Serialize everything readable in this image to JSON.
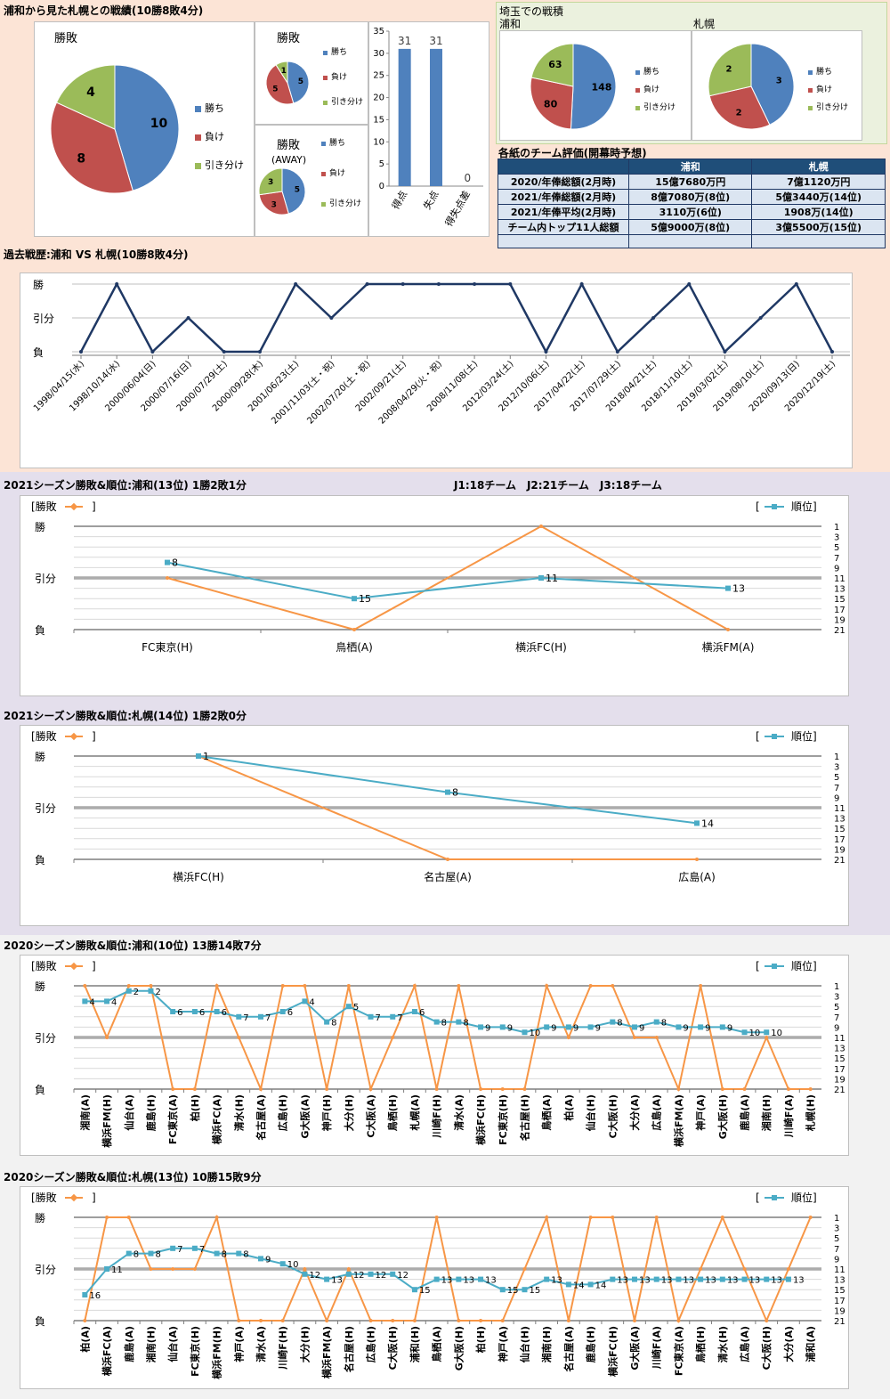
{
  "colors": {
    "blue": "#4f81bd",
    "red": "#c0504d",
    "green": "#9bbb59",
    "navy": "#1f3864",
    "teal": "#4bacc6",
    "orange": "#f79646",
    "bg_peach": "#fce4d6",
    "bg_lavender": "#e4dfec",
    "bg_gray": "#f2f2f2"
  },
  "overall": {
    "title": "浦和から見た札幌との戦績(10勝8敗4分)",
    "legend": [
      "勝ち",
      "負け",
      "引き分け"
    ],
    "pie_total": {
      "title": "勝敗",
      "values": [
        10,
        8,
        4
      ]
    },
    "pie_home": {
      "title": "勝敗",
      "values": [
        5,
        5,
        1
      ]
    },
    "pie_away": {
      "title": "勝敗",
      "subtitle": "(AWAY)",
      "values": [
        5,
        3,
        3
      ]
    },
    "goals_bar": {
      "categories": [
        "得点",
        "失点",
        "得失点差"
      ],
      "values": [
        31,
        31,
        0
      ],
      "yticks": [
        "0",
        "5",
        "10",
        "15",
        "20",
        "25",
        "30",
        "35"
      ]
    }
  },
  "saitama": {
    "title": "埼玉での戦積",
    "urawa": {
      "label": "浦和",
      "values": [
        148,
        80,
        63
      ]
    },
    "sapporo": {
      "label": "札幌",
      "values": [
        3,
        2,
        2
      ]
    },
    "legend": [
      "勝ち",
      "負け",
      "引き分け"
    ]
  },
  "evaluation": {
    "title": "各紙のチーム評価(開幕時予想)",
    "headers": [
      "",
      "浦和",
      "札幌"
    ],
    "rows": [
      [
        "2020/年俸総額(2月時)",
        "15億7680万円",
        "7億1120万円"
      ],
      [
        "2021/年俸総額(2月時)",
        "8億7080万(8位)",
        "5億3440万(14位)"
      ],
      [
        "2021/年俸平均(2月時)",
        "3110万(6位)",
        "1908万(14位)"
      ],
      [
        "チーム内トップ11人総額",
        "5億9000万(8位)",
        "3億5500万(15位)"
      ],
      [
        "",
        "",
        ""
      ]
    ]
  },
  "history": {
    "title": "過去戦歴:浦和 VS 札幌(10勝8敗4分)",
    "ylabels": [
      "勝",
      "引分",
      "負"
    ],
    "dates": [
      "1998/04/15(水)",
      "1998/10/14(水)",
      "2000/06/04(日)",
      "2000/07/16(日)",
      "2000/07/29(土)",
      "2000/09/28(木)",
      "2001/06/23(土)",
      "2001/11/03(土・祝)",
      "2002/07/20(土・祝)",
      "2002/09/21(土)",
      "2008/04/29(火・祝)",
      "2008/11/08(土)",
      "2012/03/24(土)",
      "2012/10/06(土)",
      "2017/04/22(土)",
      "2017/07/29(土)",
      "2018/04/21(土)",
      "2018/11/10(土)",
      "2019/03/02(土)",
      "2019/08/10(土)",
      "2020/09/13(日)",
      "2020/12/19(土)"
    ],
    "results": [
      0,
      2,
      0,
      1,
      0,
      0,
      2,
      1,
      2,
      2,
      2,
      2,
      2,
      0,
      2,
      0,
      1,
      2,
      0,
      1,
      2,
      0
    ]
  },
  "rank_charts": [
    {
      "title": "2021シーズン勝敗&順位:浦和(13位) 1勝2敗1分",
      "note": "J1:18チーム　J2:21チーム　J3:18チーム",
      "legend_left": "[勝敗",
      "legend_right": "順位]",
      "bg": "lavender",
      "rotate": false,
      "matches": [
        "FC東京(H)",
        "鳥栖(A)",
        "横浜FC(H)",
        "横浜FM(A)"
      ],
      "results": [
        1,
        0,
        2,
        0
      ],
      "ranks": [
        8,
        15,
        11,
        13
      ]
    },
    {
      "title": "2021シーズン勝敗&順位:札幌(14位) 1勝2敗0分",
      "note": "",
      "legend_left": "[勝敗",
      "legend_right": "順位]",
      "bg": "lavender",
      "rotate": false,
      "matches": [
        "横浜FC(H)",
        "名古屋(A)",
        "広島(A)"
      ],
      "results": [
        2,
        0,
        0
      ],
      "ranks": [
        1,
        8,
        14
      ]
    },
    {
      "title": "2020シーズン勝敗&順位:浦和(10位) 13勝14敗7分",
      "note": "",
      "legend_left": "[勝敗",
      "legend_right": "順位]",
      "bg": "gray",
      "rotate": true,
      "matches": [
        "湘南(A)",
        "横浜FM(H)",
        "仙台(A)",
        "鹿島(H)",
        "FC東京(A)",
        "柏(H)",
        "横浜FC(A)",
        "清水(H)",
        "名古屋(A)",
        "広島(H)",
        "G大阪(A)",
        "神戸(H)",
        "大分(H)",
        "C大阪(A)",
        "鳥栖(H)",
        "札幌(A)",
        "川崎F(H)",
        "清水(A)",
        "横浜FC(H)",
        "FC東京(H)",
        "名古屋(H)",
        "鳥栖(A)",
        "柏(A)",
        "仙台(H)",
        "C大阪(H)",
        "大分(A)",
        "広島(A)",
        "横浜FM(A)",
        "神戸(A)",
        "G大阪(H)",
        "鹿島(A)",
        "湘南(H)",
        "川崎F(A)",
        "札幌(H)"
      ],
      "results": [
        2,
        1,
        2,
        2,
        0,
        0,
        2,
        1,
        0,
        2,
        2,
        0,
        2,
        0,
        1,
        2,
        0,
        2,
        0,
        0,
        0,
        2,
        1,
        2,
        2,
        1,
        1,
        0,
        2,
        0,
        0,
        1,
        0,
        0
      ],
      "ranks": [
        4,
        4,
        2,
        2,
        6,
        6,
        6,
        7,
        7,
        6,
        4,
        8,
        5,
        7,
        7,
        6,
        8,
        8,
        9,
        9,
        10,
        9,
        9,
        9,
        8,
        9,
        8,
        9,
        9,
        9,
        10,
        10,
        null,
        null
      ]
    },
    {
      "title": "2020シーズン勝敗&順位:札幌(13位) 10勝15敗9分",
      "note": "",
      "legend_left": "[勝敗",
      "legend_right": "順位]",
      "bg": "gray",
      "rotate": true,
      "matches": [
        "柏(A)",
        "横浜FC(A)",
        "鹿島(A)",
        "湘南(H)",
        "仙台(A)",
        "FC東京(H)",
        "横浜FM(H)",
        "神戸(A)",
        "清水(A)",
        "川崎F(H)",
        "大分(H)",
        "横浜FM(A)",
        "名古屋(H)",
        "広島(H)",
        "C大阪(H)",
        "浦和(H)",
        "鳥栖(A)",
        "G大阪(H)",
        "柏(H)",
        "神戸(A)",
        "仙台(H)",
        "湘南(H)",
        "名古屋(A)",
        "鹿島(H)",
        "横浜FC(H)",
        "G大阪(A)",
        "川崎F(A)",
        "FC東京(A)",
        "鳥栖(H)",
        "清水(H)",
        "広島(A)",
        "C大阪(H)",
        "大分(A)",
        "浦和(A)"
      ],
      "results": [
        0,
        2,
        2,
        1,
        1,
        1,
        2,
        0,
        0,
        0,
        1,
        0,
        1,
        0,
        0,
        0,
        2,
        0,
        0,
        0,
        1,
        2,
        0,
        2,
        2,
        0,
        2,
        0,
        1,
        2,
        1,
        0,
        1,
        2
      ],
      "ranks": [
        16,
        11,
        8,
        8,
        7,
        7,
        8,
        8,
        9,
        10,
        12,
        13,
        12,
        12,
        12,
        15,
        13,
        13,
        13,
        15,
        15,
        13,
        14,
        14,
        13,
        13,
        13,
        13,
        13,
        13,
        13,
        13,
        13,
        null
      ]
    }
  ],
  "rank_axis": [
    "1",
    "3",
    "5",
    "7",
    "9",
    "11",
    "13",
    "15",
    "17",
    "19",
    "21"
  ]
}
